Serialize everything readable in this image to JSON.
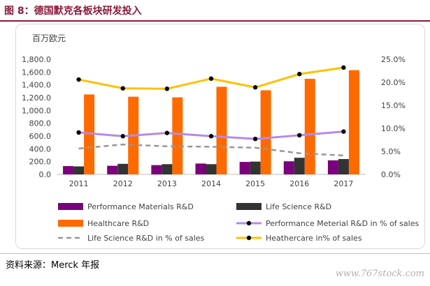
{
  "figure": {
    "title": "图 8：德国默克各板块研发投入",
    "source": "资料来源：Merck 年报",
    "watermark": "www.767stock.com"
  },
  "chart_data": {
    "type": "bar",
    "title": "",
    "unit_label": "百万欧元",
    "categories": [
      "2011",
      "2012",
      "2013",
      "2014",
      "2015",
      "2016",
      "2017"
    ],
    "y_left": {
      "range": [
        0,
        1800
      ],
      "ticks": [
        "0.0",
        "200.0",
        "400.0",
        "600.0",
        "800.0",
        "1,000.0",
        "1,200.0",
        "1,400.0",
        "1,600.0",
        "1,800.0"
      ]
    },
    "y_right": {
      "range": [
        0,
        25
      ],
      "ticks": [
        "0.0%",
        "5.0%",
        "10.0%",
        "15.0%",
        "20.0%",
        "25.0%"
      ]
    },
    "grid": false,
    "legend_position": "bottom",
    "series": [
      {
        "name": "Performance Materials R&D",
        "kind": "bar",
        "axis": "left",
        "color": "#7b007b",
        "values": [
          130,
          135,
          145,
          170,
          195,
          205,
          220
        ]
      },
      {
        "name": "Life Science R&D",
        "kind": "bar",
        "axis": "left",
        "color": "#333333",
        "values": [
          125,
          165,
          160,
          160,
          200,
          260,
          240
        ]
      },
      {
        "name": "Healthcare R&D",
        "kind": "bar",
        "axis": "left",
        "color": "#ff6a00",
        "values": [
          1250,
          1215,
          1205,
          1370,
          1315,
          1495,
          1630
        ]
      },
      {
        "name": "Performance Meterial  R&D in % of sales",
        "kind": "line",
        "axis": "right",
        "color": "#b48be6",
        "style": "solid-markers",
        "values": [
          9.1,
          8.3,
          9.0,
          8.3,
          7.7,
          8.5,
          9.3
        ]
      },
      {
        "name": "Life Science R&D in % of sales",
        "kind": "line",
        "axis": "right",
        "color": "#969696",
        "style": "dashed",
        "values": [
          5.6,
          6.5,
          6.1,
          6.0,
          5.8,
          4.6,
          4.1
        ]
      },
      {
        "name": "Heathercare in% of sales",
        "kind": "line",
        "axis": "right",
        "color": "#ffc000",
        "style": "solid-markers",
        "values": [
          20.6,
          18.7,
          18.6,
          20.8,
          18.9,
          21.8,
          23.2
        ]
      }
    ]
  }
}
